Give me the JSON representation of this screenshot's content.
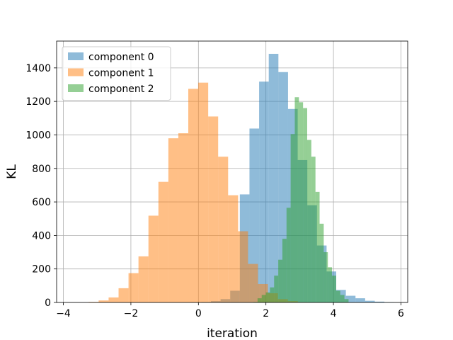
{
  "chart_data": {
    "type": "bar",
    "subtype": "histogram",
    "xlabel": "iteration",
    "ylabel": "KL",
    "xlim": [
      -4.2,
      6.2
    ],
    "ylim": [
      0,
      1560
    ],
    "xticks": [
      -4,
      -2,
      0,
      2,
      4,
      6
    ],
    "yticks": [
      0,
      200,
      400,
      600,
      800,
      1000,
      1200,
      1400
    ],
    "grid": true,
    "legend_position": "top-left",
    "series": [
      {
        "name": "component 0",
        "color": "#1f77b4",
        "bin_width": 0.2855,
        "bins": [
          {
            "x0": -0.2,
            "count": 2
          },
          {
            "x0": 0.0855,
            "count": 3
          },
          {
            "x0": 0.371,
            "count": 8
          },
          {
            "x0": 0.6565,
            "count": 20
          },
          {
            "x0": 0.942,
            "count": 70
          },
          {
            "x0": 1.2275,
            "count": 645
          },
          {
            "x0": 1.513,
            "count": 1038
          },
          {
            "x0": 1.7985,
            "count": 1318
          },
          {
            "x0": 2.084,
            "count": 1484
          },
          {
            "x0": 2.3695,
            "count": 1375
          },
          {
            "x0": 2.655,
            "count": 1155
          },
          {
            "x0": 2.9405,
            "count": 850
          },
          {
            "x0": 3.226,
            "count": 580
          },
          {
            "x0": 3.5115,
            "count": 340
          },
          {
            "x0": 3.797,
            "count": 185
          },
          {
            "x0": 4.0825,
            "count": 75
          },
          {
            "x0": 4.368,
            "count": 40
          },
          {
            "x0": 4.6535,
            "count": 25
          },
          {
            "x0": 4.939,
            "count": 10
          },
          {
            "x0": 5.2245,
            "count": 5
          },
          {
            "x0": 5.51,
            "count": 2
          }
        ]
      },
      {
        "name": "component 1",
        "color": "#ff7f0e",
        "bin_width": 0.295,
        "bins": [
          {
            "x0": -3.25,
            "count": 3
          },
          {
            "x0": -2.955,
            "count": 12
          },
          {
            "x0": -2.66,
            "count": 30
          },
          {
            "x0": -2.365,
            "count": 85
          },
          {
            "x0": -2.07,
            "count": 175
          },
          {
            "x0": -1.775,
            "count": 275
          },
          {
            "x0": -1.48,
            "count": 518
          },
          {
            "x0": -1.185,
            "count": 720
          },
          {
            "x0": -0.89,
            "count": 980
          },
          {
            "x0": -0.595,
            "count": 1010
          },
          {
            "x0": -0.3,
            "count": 1275
          },
          {
            "x0": -0.005,
            "count": 1312
          },
          {
            "x0": 0.29,
            "count": 1110
          },
          {
            "x0": 0.585,
            "count": 870
          },
          {
            "x0": 0.88,
            "count": 640
          },
          {
            "x0": 1.175,
            "count": 425
          },
          {
            "x0": 1.47,
            "count": 230
          },
          {
            "x0": 1.765,
            "count": 110
          },
          {
            "x0": 2.06,
            "count": 55
          },
          {
            "x0": 2.355,
            "count": 20
          },
          {
            "x0": 2.65,
            "count": 8
          },
          {
            "x0": 2.945,
            "count": 2
          }
        ]
      },
      {
        "name": "component 2",
        "color": "#2ca02c",
        "bin_width": 0.1225,
        "bins": [
          {
            "x0": 1.63,
            "count": 3
          },
          {
            "x0": 1.7525,
            "count": 25
          },
          {
            "x0": 1.875,
            "count": 45
          },
          {
            "x0": 1.9975,
            "count": 60
          },
          {
            "x0": 2.12,
            "count": 90
          },
          {
            "x0": 2.2425,
            "count": 160
          },
          {
            "x0": 2.365,
            "count": 255
          },
          {
            "x0": 2.4875,
            "count": 380
          },
          {
            "x0": 2.61,
            "count": 565
          },
          {
            "x0": 2.7325,
            "count": 1005
          },
          {
            "x0": 2.855,
            "count": 1225
          },
          {
            "x0": 2.9775,
            "count": 1195
          },
          {
            "x0": 3.1,
            "count": 1160
          },
          {
            "x0": 3.2225,
            "count": 970
          },
          {
            "x0": 3.345,
            "count": 870
          },
          {
            "x0": 3.4675,
            "count": 660
          },
          {
            "x0": 3.59,
            "count": 470
          },
          {
            "x0": 3.7125,
            "count": 300
          },
          {
            "x0": 3.835,
            "count": 210
          },
          {
            "x0": 3.9575,
            "count": 160
          },
          {
            "x0": 4.08,
            "count": 70
          },
          {
            "x0": 4.2025,
            "count": 45
          },
          {
            "x0": 4.325,
            "count": 20
          }
        ]
      }
    ]
  }
}
